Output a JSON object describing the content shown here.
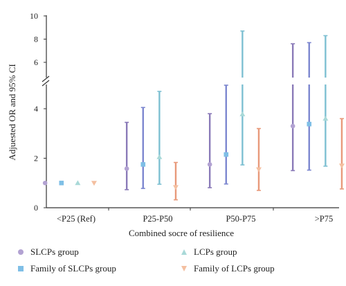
{
  "chart_data": {
    "type": "scatter",
    "subtype": "point-estimate with 95% CI error bars, broken y-axis",
    "xlabel": "Combined socre of resilience",
    "ylabel": "Adjuested OR and 95% CI",
    "categories": [
      "<P25 (Ref)",
      "P25-P50",
      "P50-P75",
      ">P75"
    ],
    "y_ticks_lower": [
      "0",
      "2",
      "4"
    ],
    "y_ticks_upper": [
      "6",
      "8",
      "10"
    ],
    "ylim_lower": [
      0,
      5
    ],
    "ylim_upper": [
      5,
      10
    ],
    "axis_break": true,
    "grid": false,
    "legend_position": "bottom",
    "series": [
      {
        "name": "SLCPs group",
        "marker": "circle",
        "color": "#b2a2d2",
        "line_color": "#8a7ab8",
        "or": [
          1.0,
          1.58,
          1.75,
          3.3
        ],
        "lower": [
          1.0,
          0.73,
          0.81,
          1.5
        ],
        "upper": [
          1.0,
          3.45,
          3.8,
          7.6
        ]
      },
      {
        "name": "Family of SLCPs group",
        "marker": "square",
        "color": "#7fbfe6",
        "line_color": "#7c86cf",
        "or": [
          1.0,
          1.75,
          2.15,
          3.38
        ],
        "lower": [
          1.0,
          0.78,
          0.96,
          1.52
        ],
        "upper": [
          1.0,
          4.05,
          4.95,
          7.7
        ]
      },
      {
        "name": "LCPs group",
        "marker": "triangle",
        "color": "#a9d9d8",
        "line_color": "#7ec0d2",
        "or": [
          1.0,
          2.05,
          3.78,
          3.6
        ],
        "lower": [
          1.0,
          0.95,
          1.73,
          1.68
        ],
        "upper": [
          1.0,
          4.7,
          8.7,
          8.3
        ]
      },
      {
        "name": "Family of LCPs group",
        "marker": "triangle-down",
        "color": "#f4bfa0",
        "line_color": "#e8997a",
        "or": [
          1.0,
          0.83,
          1.55,
          1.7
        ],
        "lower": [
          1.0,
          0.32,
          0.7,
          0.76
        ],
        "upper": [
          1.0,
          1.83,
          3.2,
          3.6
        ]
      }
    ]
  }
}
